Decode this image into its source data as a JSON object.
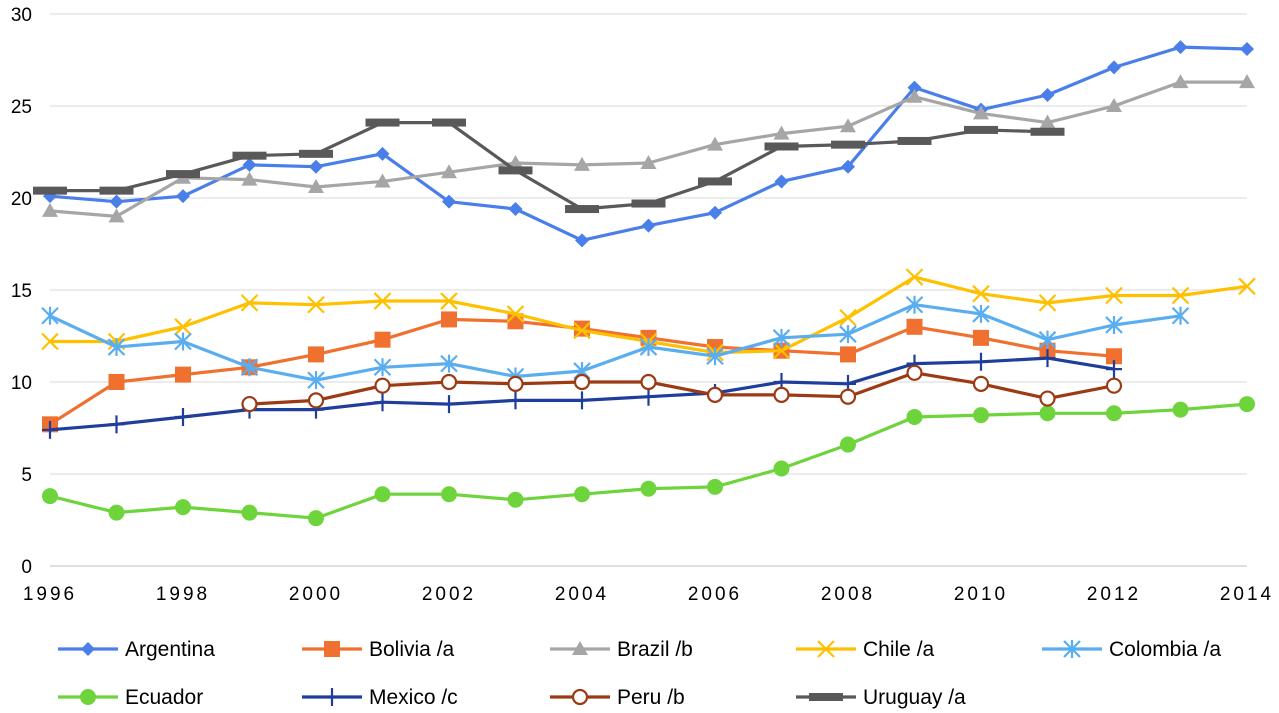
{
  "chart_data": {
    "type": "line",
    "title": "",
    "xlabel": "",
    "ylabel": "",
    "x": [
      1996,
      1997,
      1998,
      1999,
      2000,
      2001,
      2002,
      2003,
      2004,
      2005,
      2006,
      2007,
      2008,
      2009,
      2010,
      2011,
      2012,
      2013,
      2014
    ],
    "xlim": [
      1996,
      2014
    ],
    "ylim": [
      0,
      30
    ],
    "y_ticks": [
      0,
      5,
      10,
      15,
      20,
      25,
      30
    ],
    "x_ticks": [
      1996,
      1998,
      2000,
      2002,
      2004,
      2006,
      2008,
      2010,
      2012,
      2014
    ],
    "grid": "horizontal",
    "legend_position": "bottom",
    "series": [
      {
        "name": "Argentina",
        "color": "#4a7ee8",
        "marker": "diamond",
        "values": [
          20.1,
          19.8,
          20.1,
          21.8,
          21.7,
          22.4,
          19.8,
          19.4,
          17.7,
          18.5,
          19.2,
          20.9,
          21.7,
          26.0,
          24.8,
          25.6,
          27.1,
          28.2,
          28.1
        ]
      },
      {
        "name": "Bolivia /a",
        "color": "#f07030",
        "marker": "square",
        "values": [
          7.7,
          10.0,
          10.4,
          10.8,
          11.5,
          12.3,
          13.4,
          13.3,
          12.9,
          12.4,
          11.9,
          11.7,
          11.5,
          13.0,
          12.4,
          11.7,
          11.4,
          null,
          null
        ]
      },
      {
        "name": "Brazil /b",
        "color": "#a6a6a6",
        "marker": "triangle",
        "values": [
          19.3,
          19.0,
          21.1,
          21.0,
          20.6,
          20.9,
          21.4,
          21.9,
          21.8,
          21.9,
          22.9,
          23.5,
          23.9,
          25.5,
          24.6,
          24.1,
          25.0,
          26.3,
          26.3
        ]
      },
      {
        "name": "Chile /a",
        "color": "#ffc000",
        "marker": "x",
        "values": [
          12.2,
          12.2,
          13.0,
          14.3,
          14.2,
          14.4,
          14.4,
          13.7,
          12.8,
          12.2,
          11.6,
          11.7,
          13.5,
          15.7,
          14.8,
          14.3,
          14.7,
          14.7,
          15.2
        ]
      },
      {
        "name": "Colombia /a",
        "color": "#5aaef0",
        "marker": "asterisk",
        "values": [
          13.6,
          11.9,
          12.2,
          10.8,
          10.1,
          10.8,
          11.0,
          10.3,
          10.6,
          11.9,
          11.4,
          12.4,
          12.6,
          14.2,
          13.7,
          12.3,
          13.1,
          13.6,
          null
        ]
      },
      {
        "name": "Ecuador",
        "color": "#6ed43c",
        "marker": "circle",
        "values": [
          3.8,
          2.9,
          3.2,
          2.9,
          2.6,
          3.9,
          3.9,
          3.6,
          3.9,
          4.2,
          4.3,
          5.3,
          6.6,
          8.1,
          8.2,
          8.3,
          8.3,
          8.5,
          8.8
        ]
      },
      {
        "name": "Mexico /c",
        "color": "#1f3e9c",
        "marker": "plus",
        "values": [
          7.4,
          7.7,
          8.1,
          8.5,
          8.5,
          8.9,
          8.8,
          9.0,
          9.0,
          9.2,
          9.4,
          10.0,
          9.9,
          11.0,
          11.1,
          11.3,
          10.7,
          null,
          null
        ]
      },
      {
        "name": "Peru /b",
        "color": "#9c3a14",
        "marker": "hollow-circle",
        "values": [
          null,
          null,
          null,
          8.8,
          9.0,
          9.8,
          10.0,
          9.9,
          10.0,
          10.0,
          9.3,
          9.3,
          9.2,
          10.5,
          9.9,
          9.1,
          9.8,
          null,
          null
        ]
      },
      {
        "name": "Uruguay /a",
        "color": "#595959",
        "marker": "dash",
        "values": [
          20.4,
          20.4,
          21.3,
          22.3,
          22.4,
          24.1,
          24.1,
          21.5,
          19.4,
          19.7,
          20.9,
          22.8,
          22.9,
          23.1,
          23.7,
          23.6,
          null,
          null,
          null
        ]
      }
    ]
  }
}
